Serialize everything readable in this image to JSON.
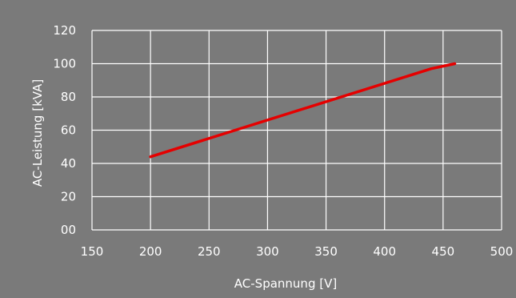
{
  "chart_data": {
    "type": "line",
    "xlabel": "AC-Spannung [V]",
    "ylabel": "AC-Leistung [kVA]",
    "xlim": [
      150,
      500
    ],
    "ylim": [
      0,
      120
    ],
    "x_ticks": [
      "150",
      "200",
      "250",
      "300",
      "350",
      "400",
      "450",
      "500"
    ],
    "y_ticks": [
      "00",
      "20",
      "40",
      "60",
      "80",
      "100",
      "120"
    ],
    "grid": true,
    "legend": "none",
    "series": [
      {
        "color": "#e50000",
        "points": [
          {
            "x": 200,
            "y": 44
          },
          {
            "x": 440,
            "y": 97
          },
          {
            "x": 460,
            "y": 100
          }
        ]
      }
    ]
  },
  "colors": {
    "background": "#7a7a7a",
    "grid": "#ffffff",
    "text": "#ffffff",
    "line": "#e50000"
  }
}
